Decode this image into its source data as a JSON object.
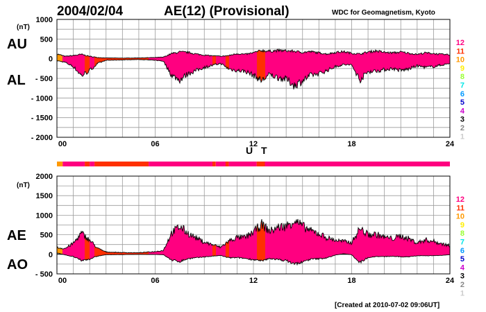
{
  "header": {
    "date": "2004/02/04",
    "title": "AE(12) (Provisional)",
    "source": "WDC for Geomagnetism, Kyoto"
  },
  "footer": {
    "created": "[Created at 2010-07-02 09:06UT]"
  },
  "legend": {
    "items": [
      {
        "label": "12",
        "color": "#ff0080"
      },
      {
        "label": "11",
        "color": "#ff3000"
      },
      {
        "label": "10",
        "color": "#ff9900"
      },
      {
        "label": "9",
        "color": "#ffee00"
      },
      {
        "label": "8",
        "color": "#99ff33"
      },
      {
        "label": "7",
        "color": "#00e6e6"
      },
      {
        "label": "6",
        "color": "#0099ff"
      },
      {
        "label": "5",
        "color": "#0000cc"
      },
      {
        "label": "4",
        "color": "#cc00cc"
      },
      {
        "label": "3",
        "color": "#000000"
      },
      {
        "label": "2",
        "color": "#888888"
      },
      {
        "label": "1",
        "color": "#cccccc"
      }
    ]
  },
  "chart_data": [
    {
      "type": "area",
      "panel": "top",
      "unit": "(nT)",
      "xlabel": "U T",
      "xlim": [
        0,
        24
      ],
      "ylim": [
        -2000,
        1000
      ],
      "x_ticks": [
        "00",
        "06",
        "12",
        "18",
        "24"
      ],
      "y_ticks": [
        "1000",
        "500",
        "0",
        "- 500",
        "- 1000",
        "- 1500",
        "- 2000"
      ],
      "series": [
        {
          "name": "AU",
          "x": [
            0,
            0.5,
            1,
            1.5,
            2,
            2.5,
            3,
            4,
            5,
            6,
            6.5,
            7,
            7.5,
            8,
            8.5,
            9,
            10,
            10.5,
            11,
            11.5,
            12,
            12.5,
            13,
            13.5,
            14,
            14.5,
            15,
            15.5,
            16,
            16.5,
            17,
            17.5,
            18,
            18.5,
            19,
            19.5,
            20,
            20.5,
            21,
            21.5,
            22,
            22.5,
            23,
            23.5,
            24
          ],
          "values": [
            120,
            60,
            80,
            110,
            60,
            30,
            20,
            15,
            20,
            30,
            40,
            130,
            170,
            160,
            120,
            90,
            60,
            80,
            130,
            110,
            150,
            210,
            190,
            210,
            200,
            190,
            160,
            180,
            150,
            120,
            160,
            180,
            140,
            120,
            170,
            200,
            160,
            150,
            170,
            140,
            110,
            150,
            130,
            110,
            100
          ]
        },
        {
          "name": "AL",
          "x": [
            0,
            0.5,
            1,
            1.5,
            2,
            2.5,
            3,
            4,
            5,
            6,
            6.5,
            7,
            7.5,
            8,
            8.5,
            9,
            10,
            10.5,
            11,
            11.5,
            12,
            12.5,
            13,
            13.5,
            14,
            14.5,
            15,
            15.5,
            16,
            16.5,
            17,
            17.5,
            18,
            18.5,
            19,
            19.5,
            20,
            20.5,
            21,
            21.5,
            22,
            22.5,
            23,
            23.5,
            24
          ],
          "values": [
            -50,
            -90,
            -200,
            -430,
            -300,
            -120,
            -40,
            -30,
            -20,
            -40,
            -60,
            -420,
            -540,
            -380,
            -300,
            -220,
            -120,
            -260,
            -300,
            -320,
            -420,
            -560,
            -400,
            -480,
            -520,
            -680,
            -560,
            -420,
            -380,
            -300,
            -200,
            -150,
            -160,
            -540,
            -330,
            -310,
            -280,
            -250,
            -300,
            -260,
            -180,
            -220,
            -200,
            -160,
            -120
          ]
        }
      ]
    },
    {
      "type": "area",
      "panel": "bottom",
      "unit": "(nT)",
      "xlabel": "",
      "xlim": [
        0,
        24
      ],
      "ylim": [
        -500,
        2000
      ],
      "x_ticks": [
        "00",
        "06",
        "12",
        "18",
        "24"
      ],
      "y_ticks": [
        "2000",
        "1500",
        "1000",
        "500",
        "0",
        "- 500"
      ],
      "series": [
        {
          "name": "AE",
          "x": [
            0,
            0.5,
            1,
            1.5,
            2,
            2.5,
            3,
            4,
            5,
            6,
            6.5,
            7,
            7.5,
            8,
            8.5,
            9,
            10,
            10.5,
            11,
            11.5,
            12,
            12.5,
            13,
            13.5,
            14,
            14.5,
            15,
            15.5,
            16,
            16.5,
            17,
            17.5,
            18,
            18.5,
            19,
            19.5,
            20,
            20.5,
            21,
            21.5,
            22,
            22.5,
            23,
            23.5,
            24
          ],
          "values": [
            170,
            150,
            280,
            540,
            360,
            150,
            60,
            45,
            40,
            70,
            100,
            550,
            710,
            540,
            420,
            310,
            180,
            340,
            430,
            430,
            570,
            770,
            590,
            690,
            720,
            870,
            720,
            600,
            530,
            420,
            360,
            330,
            300,
            660,
            500,
            510,
            440,
            400,
            470,
            400,
            290,
            370,
            330,
            270,
            220
          ]
        },
        {
          "name": "AO",
          "x": [
            0,
            0.5,
            1,
            1.5,
            2,
            2.5,
            3,
            4,
            5,
            6,
            6.5,
            7,
            7.5,
            8,
            8.5,
            9,
            10,
            10.5,
            11,
            11.5,
            12,
            12.5,
            13,
            13.5,
            14,
            14.5,
            15,
            15.5,
            16,
            16.5,
            17,
            17.5,
            18,
            18.5,
            19,
            19.5,
            20,
            20.5,
            21,
            21.5,
            22,
            22.5,
            23,
            23.5,
            24
          ],
          "values": [
            35,
            -15,
            -60,
            -160,
            -120,
            -45,
            -10,
            -8,
            0,
            -5,
            -10,
            -145,
            -185,
            -110,
            -90,
            -65,
            -30,
            -90,
            -85,
            -105,
            -135,
            -175,
            -105,
            -135,
            -160,
            -245,
            -200,
            -120,
            -115,
            -90,
            -20,
            15,
            -10,
            -210,
            -80,
            -55,
            -60,
            -50,
            -65,
            -60,
            -35,
            -35,
            -35,
            -25,
            -10
          ]
        }
      ]
    },
    {
      "type": "bar",
      "panel": "station-count-strip",
      "segments": [
        {
          "from": 0,
          "to": 0.35,
          "stations": 10
        },
        {
          "from": 0.35,
          "to": 1.7,
          "stations": 12
        },
        {
          "from": 1.7,
          "to": 2.0,
          "stations": 11
        },
        {
          "from": 2.0,
          "to": 2.3,
          "stations": 12
        },
        {
          "from": 2.3,
          "to": 5.6,
          "stations": 11
        },
        {
          "from": 5.6,
          "to": 9.5,
          "stations": 12
        },
        {
          "from": 9.5,
          "to": 9.7,
          "stations": 11
        },
        {
          "from": 9.7,
          "to": 10.3,
          "stations": 12
        },
        {
          "from": 10.3,
          "to": 10.5,
          "stations": 11
        },
        {
          "from": 10.5,
          "to": 12.2,
          "stations": 12
        },
        {
          "from": 12.2,
          "to": 12.7,
          "stations": 11
        },
        {
          "from": 12.7,
          "to": 24,
          "stations": 12
        }
      ]
    }
  ]
}
